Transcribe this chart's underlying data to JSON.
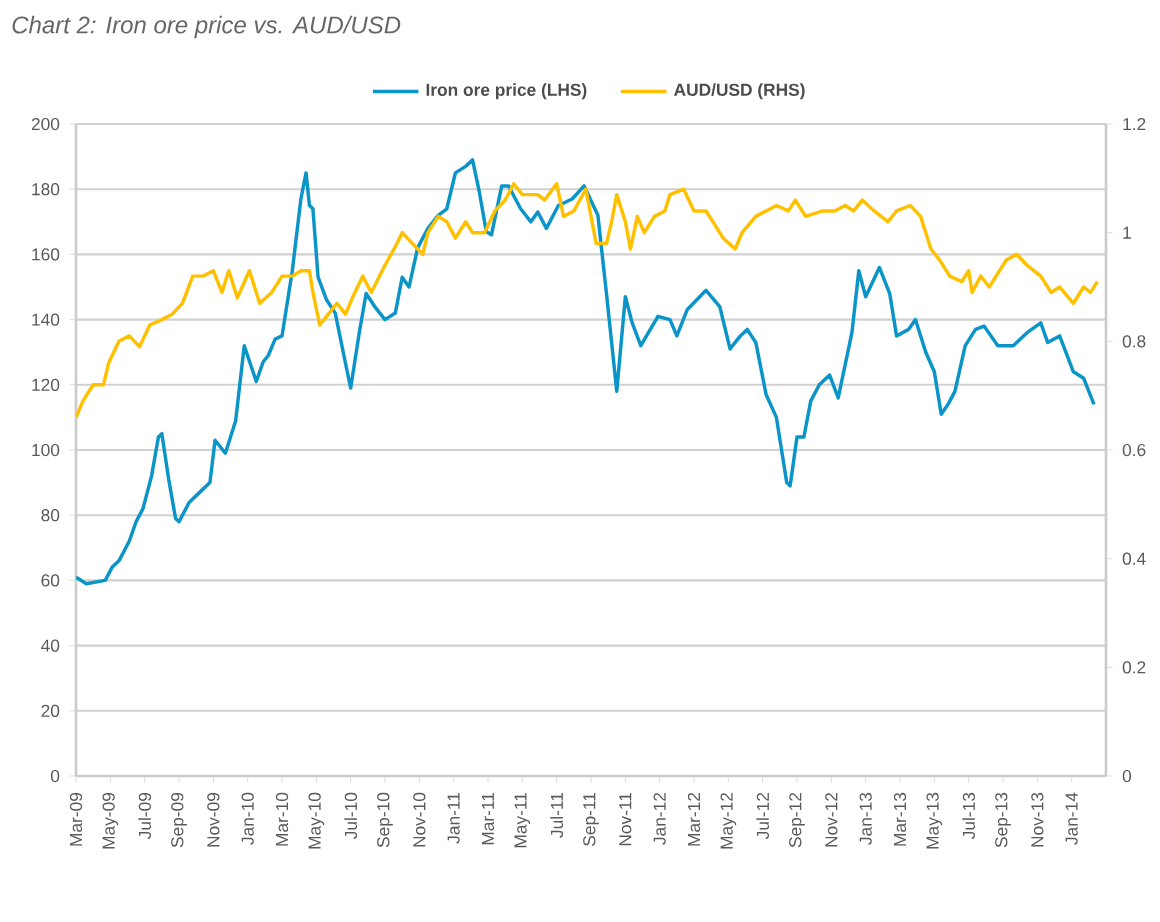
{
  "chart_data": {
    "type": "line",
    "title": "Chart 2: Iron ore price vs. AUD/USD",
    "xlim": [
      "2009-03",
      "2014-03"
    ],
    "xticks": [
      {
        "value": "2009-03",
        "label": "Mar-09"
      },
      {
        "value": "2009-05",
        "label": "May-09"
      },
      {
        "value": "2009-07",
        "label": "Jul-09"
      },
      {
        "value": "2009-09",
        "label": "Sep-09"
      },
      {
        "value": "2009-11",
        "label": "Nov-09"
      },
      {
        "value": "2010-01",
        "label": "Jan-10"
      },
      {
        "value": "2010-03",
        "label": "Mar-10"
      },
      {
        "value": "2010-05",
        "label": "May-10"
      },
      {
        "value": "2010-07",
        "label": "Jul-10"
      },
      {
        "value": "2010-09",
        "label": "Sep-10"
      },
      {
        "value": "2010-11",
        "label": "Nov-10"
      },
      {
        "value": "2011-01",
        "label": "Jan-11"
      },
      {
        "value": "2011-03",
        "label": "Mar-11"
      },
      {
        "value": "2011-05",
        "label": "May-11"
      },
      {
        "value": "2011-07",
        "label": "Jul-11"
      },
      {
        "value": "2011-09",
        "label": "Sep-11"
      },
      {
        "value": "2011-11",
        "label": "Nov-11"
      },
      {
        "value": "2012-01",
        "label": "Jan-12"
      },
      {
        "value": "2012-03",
        "label": "Mar-12"
      },
      {
        "value": "2012-05",
        "label": "May-12"
      },
      {
        "value": "2012-07",
        "label": "Jul-12"
      },
      {
        "value": "2012-09",
        "label": "Sep-12"
      },
      {
        "value": "2012-11",
        "label": "Nov-12"
      },
      {
        "value": "2013-01",
        "label": "Jan-13"
      },
      {
        "value": "2013-03",
        "label": "Mar-13"
      },
      {
        "value": "2013-05",
        "label": "May-13"
      },
      {
        "value": "2013-07",
        "label": "Jul-13"
      },
      {
        "value": "2013-09",
        "label": "Sep-13"
      },
      {
        "value": "2013-11",
        "label": "Nov-13"
      },
      {
        "value": "2014-01",
        "label": "Jan-14"
      }
    ],
    "ylim": [
      0,
      200
    ],
    "yticks": [
      0,
      20,
      40,
      60,
      80,
      100,
      120,
      140,
      160,
      180,
      200
    ],
    "y2lim": [
      0,
      1.2
    ],
    "y2ticks": [
      0,
      0.2,
      0.4,
      0.6,
      0.8,
      1,
      1.2
    ],
    "grid": "y",
    "legend": "top",
    "marker": "none",
    "line_style": "solid",
    "series": [
      {
        "name": "Iron ore price (LHS)",
        "color": "#0a94c7",
        "x": [
          "2009-03-01",
          "2009-03-19",
          "2009-04-22",
          "2009-05-04",
          "2009-05-16",
          "2009-06-04",
          "2009-06-16",
          "2009-06-28",
          "2009-07-13",
          "2009-07-25",
          "2009-08-01",
          "2009-08-13",
          "2009-08-25",
          "2009-09-01",
          "2009-09-19",
          "2009-10-07",
          "2009-10-25",
          "2009-11-04",
          "2009-11-22",
          "2009-12-10",
          "2009-12-25",
          "2010-01-16",
          "2010-01-28",
          "2010-02-07",
          "2010-02-19",
          "2010-03-01",
          "2010-03-19",
          "2010-04-04",
          "2010-04-13",
          "2010-04-19",
          "2010-04-25",
          "2010-05-04",
          "2010-05-19",
          "2010-06-04",
          "2010-06-25",
          "2010-07-01",
          "2010-07-16",
          "2010-07-28",
          "2010-08-13",
          "2010-09-01",
          "2010-09-19",
          "2010-10-01",
          "2010-10-13",
          "2010-10-28",
          "2010-11-16",
          "2010-12-04",
          "2010-12-19",
          "2011-01-04",
          "2011-01-22",
          "2011-02-04",
          "2011-02-16",
          "2011-02-28",
          "2011-03-07",
          "2011-03-25",
          "2011-04-07",
          "2011-04-28",
          "2011-05-16",
          "2011-05-28",
          "2011-06-13",
          "2011-07-04",
          "2011-07-28",
          "2011-08-19",
          "2011-09-13",
          "2011-09-28",
          "2011-10-16",
          "2011-11-01",
          "2011-11-13",
          "2011-11-28",
          "2011-12-28",
          "2012-01-19",
          "2012-02-01",
          "2012-02-19",
          "2012-03-22",
          "2012-04-16",
          "2012-05-04",
          "2012-05-22",
          "2012-06-04",
          "2012-06-19",
          "2012-07-07",
          "2012-07-25",
          "2012-08-13",
          "2012-08-19",
          "2012-09-01",
          "2012-09-13",
          "2012-09-25",
          "2012-10-10",
          "2012-10-28",
          "2012-11-13",
          "2012-12-07",
          "2012-12-19",
          "2013-01-01",
          "2013-01-25",
          "2013-02-13",
          "2013-02-25",
          "2013-03-16",
          "2013-03-28",
          "2013-04-16",
          "2013-05-01",
          "2013-05-13",
          "2013-05-25",
          "2013-06-07",
          "2013-06-25",
          "2013-07-13",
          "2013-07-28",
          "2013-08-22",
          "2013-09-19",
          "2013-10-13",
          "2013-11-07",
          "2013-11-19",
          "2013-12-10",
          "2014-01-04",
          "2014-01-22",
          "2014-02-10"
        ],
        "values": [
          61,
          59,
          60,
          64,
          66,
          72,
          78,
          82,
          92,
          104,
          105,
          91,
          79,
          78,
          84,
          87,
          90,
          103,
          99,
          109,
          132,
          121,
          127,
          129,
          134,
          135,
          155,
          177,
          185,
          175,
          174,
          153,
          146,
          142,
          124,
          119,
          136,
          148,
          144,
          140,
          142,
          153,
          150,
          162,
          168,
          172,
          174,
          185,
          187,
          189,
          179,
          167,
          166,
          181,
          181,
          174,
          170,
          173,
          168,
          175,
          177,
          181,
          172,
          148,
          118,
          147,
          139,
          132,
          141,
          140,
          135,
          143,
          149,
          144,
          131,
          135,
          137,
          133,
          117,
          110,
          90,
          89,
          104,
          104,
          115,
          120,
          123,
          116,
          136,
          155,
          147,
          156,
          148,
          135,
          137,
          140,
          130,
          124,
          111,
          114,
          118,
          132,
          137,
          138,
          132,
          132,
          136,
          139,
          133,
          135,
          124,
          122,
          114
        ]
      },
      {
        "name": "AUD/USD (RHS)",
        "color": "#ffc000",
        "axis": "y2",
        "x": [
          "2009-03-01",
          "2009-03-13",
          "2009-04-01",
          "2009-04-19",
          "2009-04-28",
          "2009-05-16",
          "2009-06-04",
          "2009-06-22",
          "2009-07-10",
          "2009-08-01",
          "2009-08-19",
          "2009-09-07",
          "2009-09-25",
          "2009-10-13",
          "2009-11-01",
          "2009-11-16",
          "2009-11-28",
          "2009-12-13",
          "2010-01-04",
          "2010-01-22",
          "2010-02-13",
          "2010-03-01",
          "2010-03-19",
          "2010-04-04",
          "2010-04-19",
          "2010-04-25",
          "2010-05-07",
          "2010-05-22",
          "2010-06-07",
          "2010-06-22",
          "2010-07-04",
          "2010-07-22",
          "2010-08-07",
          "2010-09-01",
          "2010-09-22",
          "2010-10-01",
          "2010-10-19",
          "2010-11-07",
          "2010-11-16",
          "2010-12-04",
          "2010-12-19",
          "2011-01-04",
          "2011-01-22",
          "2011-02-04",
          "2011-02-25",
          "2011-03-13",
          "2011-04-01",
          "2011-04-16",
          "2011-05-01",
          "2011-05-28",
          "2011-06-10",
          "2011-07-01",
          "2011-07-13",
          "2011-08-01",
          "2011-08-22",
          "2011-09-10",
          "2011-09-28",
          "2011-10-07",
          "2011-10-16",
          "2011-11-01",
          "2011-11-10",
          "2011-11-22",
          "2011-12-04",
          "2011-12-22",
          "2012-01-10",
          "2012-01-19",
          "2012-02-13",
          "2012-03-01",
          "2012-03-22",
          "2012-04-22",
          "2012-05-13",
          "2012-05-25",
          "2012-06-19",
          "2012-07-07",
          "2012-07-25",
          "2012-08-16",
          "2012-08-28",
          "2012-09-16",
          "2012-10-16",
          "2012-11-07",
          "2012-11-25",
          "2012-12-10",
          "2012-12-25",
          "2013-01-16",
          "2013-02-10",
          "2013-02-25",
          "2013-03-19",
          "2013-04-07",
          "2013-04-25",
          "2013-05-10",
          "2013-05-28",
          "2013-06-19",
          "2013-07-01",
          "2013-07-07",
          "2013-07-22",
          "2013-08-07",
          "2013-08-25",
          "2013-09-07",
          "2013-09-25",
          "2013-10-13",
          "2013-11-07",
          "2013-11-25",
          "2013-12-10",
          "2014-01-04",
          "2014-01-22",
          "2014-02-04",
          "2014-02-16"
        ],
        "values": [
          0.66,
          0.69,
          0.72,
          0.72,
          0.76,
          0.8,
          0.81,
          0.79,
          0.83,
          0.84,
          0.85,
          0.87,
          0.92,
          0.92,
          0.93,
          0.89,
          0.93,
          0.88,
          0.93,
          0.87,
          0.89,
          0.92,
          0.92,
          0.93,
          0.93,
          0.89,
          0.83,
          0.85,
          0.87,
          0.85,
          0.88,
          0.92,
          0.89,
          0.94,
          0.98,
          1.0,
          0.98,
          0.96,
          1.0,
          1.03,
          1.02,
          0.99,
          1.02,
          1.0,
          1.0,
          1.04,
          1.06,
          1.09,
          1.07,
          1.07,
          1.06,
          1.09,
          1.03,
          1.04,
          1.08,
          0.98,
          0.98,
          1.02,
          1.07,
          1.02,
          0.97,
          1.03,
          1.0,
          1.03,
          1.04,
          1.07,
          1.08,
          1.04,
          1.04,
          0.99,
          0.97,
          1.0,
          1.03,
          1.04,
          1.05,
          1.04,
          1.06,
          1.03,
          1.04,
          1.04,
          1.05,
          1.04,
          1.06,
          1.04,
          1.02,
          1.04,
          1.05,
          1.03,
          0.97,
          0.95,
          0.92,
          0.91,
          0.93,
          0.89,
          0.92,
          0.9,
          0.93,
          0.95,
          0.96,
          0.94,
          0.92,
          0.89,
          0.9,
          0.87,
          0.9,
          0.89,
          0.91
        ]
      }
    ]
  }
}
